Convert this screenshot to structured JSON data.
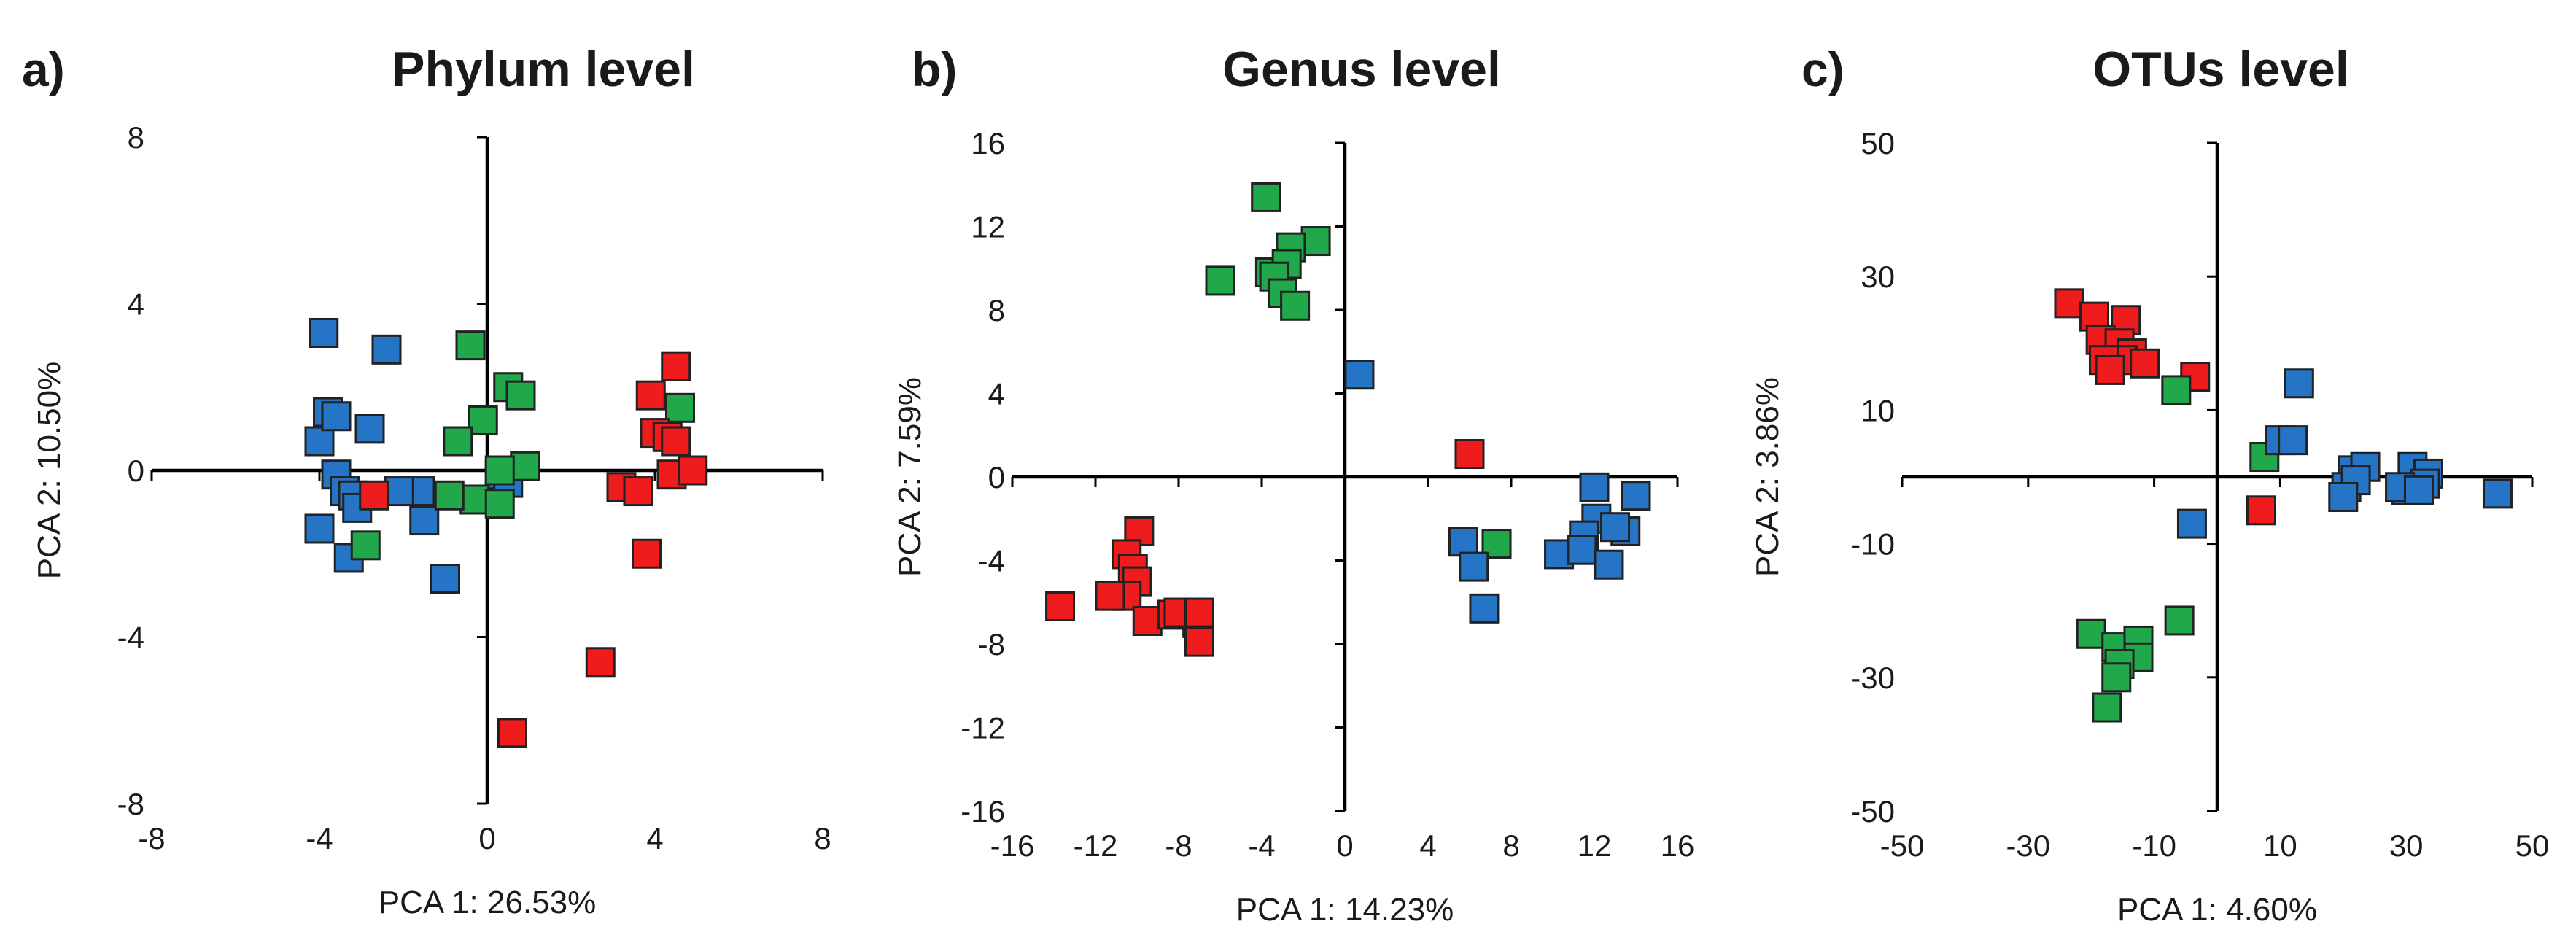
{
  "colors": {
    "red": "#ee1c1c",
    "green": "#21a84b",
    "blue": "#2674c6",
    "stroke": "#222222"
  },
  "chart_data": [
    {
      "type": "scatter",
      "panel_label": "a)",
      "title": "Phylum level",
      "xlabel": "PCA 1: 26.53%",
      "ylabel": "PCA 2: 10.50%",
      "xlim": [
        -8,
        8
      ],
      "ylim": [
        -8,
        8
      ],
      "xticks": [
        "-8",
        "-4",
        "0",
        "4",
        "8"
      ],
      "yticks": [
        "8",
        "4",
        "0",
        "-4",
        "-8"
      ],
      "series": [
        {
          "name": "blue",
          "color": "#2674c6",
          "points": [
            [
              -3.9,
              3.3
            ],
            [
              -2.4,
              2.9
            ],
            [
              -4.0,
              0.7
            ],
            [
              -3.8,
              1.4
            ],
            [
              -3.6,
              1.3
            ],
            [
              -2.8,
              1.0
            ],
            [
              -3.6,
              -0.1
            ],
            [
              -3.4,
              -0.5
            ],
            [
              -3.2,
              -0.6
            ],
            [
              -3.1,
              -0.9
            ],
            [
              -4.0,
              -1.4
            ],
            [
              -3.3,
              -2.1
            ],
            [
              -1.6,
              -0.5
            ],
            [
              -1.5,
              -1.2
            ],
            [
              -2.1,
              -0.5
            ],
            [
              -1.0,
              -2.6
            ],
            [
              0.3,
              -0.1
            ],
            [
              0.5,
              -0.3
            ]
          ]
        },
        {
          "name": "green",
          "color": "#21a84b",
          "points": [
            [
              -0.4,
              3.0
            ],
            [
              0.5,
              2.0
            ],
            [
              0.8,
              1.8
            ],
            [
              -0.1,
              1.2
            ],
            [
              -0.7,
              0.7
            ],
            [
              0.9,
              0.1
            ],
            [
              0.3,
              0.0
            ],
            [
              -0.3,
              -0.7
            ],
            [
              0.3,
              -0.8
            ],
            [
              -0.9,
              -0.6
            ],
            [
              -2.9,
              -1.8
            ],
            [
              4.6,
              1.5
            ]
          ]
        },
        {
          "name": "red",
          "color": "#ee1c1c",
          "points": [
            [
              4.5,
              2.5
            ],
            [
              3.9,
              1.8
            ],
            [
              4.0,
              0.9
            ],
            [
              4.3,
              0.8
            ],
            [
              4.5,
              0.7
            ],
            [
              4.4,
              -0.1
            ],
            [
              4.9,
              0.0
            ],
            [
              3.2,
              -0.4
            ],
            [
              3.6,
              -0.5
            ],
            [
              -2.7,
              -0.6
            ],
            [
              3.8,
              -2.0
            ],
            [
              2.7,
              -4.6
            ],
            [
              0.6,
              -6.3
            ]
          ]
        }
      ]
    },
    {
      "type": "scatter",
      "panel_label": "b)",
      "title": "Genus level",
      "xlabel": "PCA 1: 14.23%",
      "ylabel": "PCA 2: 7.59%",
      "xlim": [
        -16,
        16
      ],
      "ylim": [
        -16,
        16
      ],
      "xticks": [
        "-16",
        "-12",
        "-8",
        "-4",
        "0",
        "4",
        "8",
        "12",
        "16"
      ],
      "yticks": [
        "16",
        "12",
        "8",
        "4",
        "0",
        "-4",
        "-8",
        "-12",
        "-16"
      ],
      "series": [
        {
          "name": "green",
          "color": "#21a84b",
          "points": [
            [
              -3.8,
              13.4
            ],
            [
              -1.4,
              11.3
            ],
            [
              -2.6,
              11.0
            ],
            [
              -3.6,
              9.8
            ],
            [
              -2.8,
              10.2
            ],
            [
              -3.4,
              9.6
            ],
            [
              -6.0,
              9.4
            ],
            [
              -3.0,
              8.8
            ],
            [
              -2.4,
              8.2
            ],
            [
              -7.1,
              -7.0
            ],
            [
              7.3,
              -3.2
            ]
          ]
        },
        {
          "name": "blue",
          "color": "#2674c6",
          "points": [
            [
              0.7,
              4.9
            ],
            [
              12.0,
              -0.5
            ],
            [
              14.0,
              -0.9
            ],
            [
              12.1,
              -2.0
            ],
            [
              11.5,
              -2.8
            ],
            [
              13.5,
              -2.6
            ],
            [
              13.0,
              -2.4
            ],
            [
              10.3,
              -3.7
            ],
            [
              11.4,
              -3.5
            ],
            [
              12.7,
              -4.2
            ],
            [
              5.7,
              -3.1
            ],
            [
              6.2,
              -4.3
            ],
            [
              6.7,
              -6.3
            ]
          ]
        },
        {
          "name": "red",
          "color": "#ee1c1c",
          "points": [
            [
              6.0,
              1.1
            ],
            [
              -9.9,
              -2.6
            ],
            [
              -10.5,
              -3.7
            ],
            [
              -10.2,
              -4.4
            ],
            [
              -10.0,
              -5.0
            ],
            [
              -10.5,
              -5.7
            ],
            [
              -11.3,
              -5.7
            ],
            [
              -13.7,
              -6.2
            ],
            [
              -9.5,
              -6.9
            ],
            [
              -8.3,
              -6.6
            ],
            [
              -8.0,
              -6.5
            ],
            [
              -7.0,
              -6.5
            ],
            [
              -7.0,
              -7.9
            ]
          ]
        }
      ]
    },
    {
      "type": "scatter",
      "panel_label": "c)",
      "title": "OTUs level",
      "xlabel": "PCA 1: 4.60%",
      "ylabel": "PCA 2: 3.86%",
      "xlim": [
        -50,
        50
      ],
      "ylim": [
        -50,
        50
      ],
      "xticks": [
        "-50",
        "-30",
        "-10",
        "10",
        "30",
        "50"
      ],
      "yticks": [
        "50",
        "30",
        "10",
        "-10",
        "-30",
        "-50"
      ],
      "series": [
        {
          "name": "red",
          "color": "#ee1c1c",
          "points": [
            [
              -23.5,
              26.0
            ],
            [
              -19.5,
              24.0
            ],
            [
              -14.5,
              23.5
            ],
            [
              -18.5,
              20.5
            ],
            [
              -15.5,
              20.0
            ],
            [
              -13.5,
              18.5
            ],
            [
              -15.0,
              17.5
            ],
            [
              -11.5,
              17.0
            ],
            [
              -18.0,
              17.5
            ],
            [
              -17.0,
              16.0
            ],
            [
              -3.5,
              15.0
            ],
            [
              7.0,
              -5.0
            ]
          ]
        },
        {
          "name": "green",
          "color": "#21a84b",
          "points": [
            [
              -6.5,
              13.0
            ],
            [
              7.5,
              3.0
            ],
            [
              -20.0,
              -23.5
            ],
            [
              -16.0,
              -25.5
            ],
            [
              -12.5,
              -24.5
            ],
            [
              -6.0,
              -21.5
            ],
            [
              -12.5,
              -27.0
            ],
            [
              -15.5,
              -28.0
            ],
            [
              -16.0,
              -30.0
            ],
            [
              -17.5,
              -34.5
            ]
          ]
        },
        {
          "name": "blue",
          "color": "#2674c6",
          "points": [
            [
              13.0,
              14.0
            ],
            [
              10.0,
              5.5
            ],
            [
              12.0,
              5.5
            ],
            [
              -4.0,
              -7.0
            ],
            [
              21.5,
              1.0
            ],
            [
              23.5,
              1.5
            ],
            [
              20.5,
              -1.5
            ],
            [
              22.0,
              -0.5
            ],
            [
              31.0,
              1.5
            ],
            [
              33.5,
              0.5
            ],
            [
              33.0,
              -1.0
            ],
            [
              30.0,
              -2.0
            ],
            [
              29.0,
              -1.5
            ],
            [
              32.0,
              -2.0
            ],
            [
              20.0,
              -3.0
            ],
            [
              44.5,
              -2.5
            ]
          ]
        }
      ]
    }
  ]
}
